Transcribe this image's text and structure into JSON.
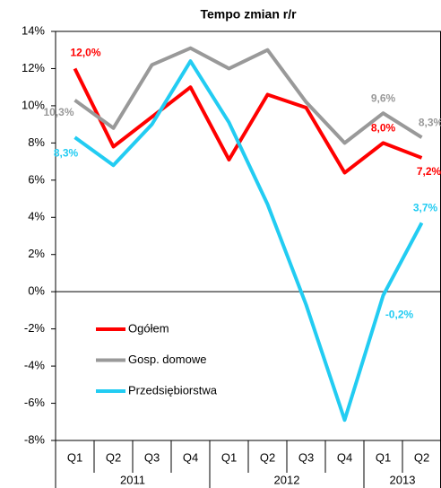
{
  "chart_data": {
    "type": "line",
    "title": "Tempo zmian r/r",
    "categories": [
      "Q1",
      "Q2",
      "Q3",
      "Q4",
      "Q1",
      "Q2",
      "Q3",
      "Q4",
      "Q1",
      "Q2"
    ],
    "groups": [
      {
        "name": "2011",
        "count": 4
      },
      {
        "name": "2012",
        "count": 4
      },
      {
        "name": "2013",
        "count": 2
      }
    ],
    "series": [
      {
        "name": "Ogółem",
        "color": "#ff0000",
        "values": [
          12.0,
          7.8,
          9.4,
          11.0,
          7.1,
          10.6,
          9.9,
          6.4,
          8.0,
          7.2
        ],
        "value_labels": [
          "12,0%",
          null,
          null,
          null,
          null,
          null,
          null,
          null,
          "8,0%",
          "7,2%"
        ]
      },
      {
        "name": "Gosp. domowe",
        "color": "#999999",
        "values": [
          10.3,
          8.8,
          12.2,
          13.1,
          12.0,
          13.0,
          10.2,
          8.0,
          9.6,
          8.3
        ],
        "value_labels": [
          "10,3%",
          null,
          null,
          null,
          null,
          null,
          null,
          null,
          "9,6%",
          "8,3%"
        ]
      },
      {
        "name": "Przedsiębiorstwa",
        "color": "#22ccf2",
        "values": [
          8.3,
          6.8,
          9.0,
          12.4,
          9.1,
          4.7,
          -0.7,
          -6.9,
          -0.2,
          3.7
        ],
        "value_labels": [
          "8,3%",
          null,
          null,
          null,
          null,
          null,
          null,
          null,
          "-0,2%",
          "3,7%"
        ]
      }
    ],
    "ylim": [
      -8,
      14
    ],
    "yticks": [
      {
        "value": -8,
        "label": "-8%"
      },
      {
        "value": -6,
        "label": "-6%"
      },
      {
        "value": -4,
        "label": "-4%"
      },
      {
        "value": -2,
        "label": "-2%"
      },
      {
        "value": 0,
        "label": "0%"
      },
      {
        "value": 2,
        "label": "2%"
      },
      {
        "value": 4,
        "label": "4%"
      },
      {
        "value": 6,
        "label": "6%"
      },
      {
        "value": 8,
        "label": "8%"
      },
      {
        "value": 10,
        "label": "10%"
      },
      {
        "value": 12,
        "label": "12%"
      },
      {
        "value": 14,
        "label": "14%"
      }
    ],
    "grid": false
  }
}
